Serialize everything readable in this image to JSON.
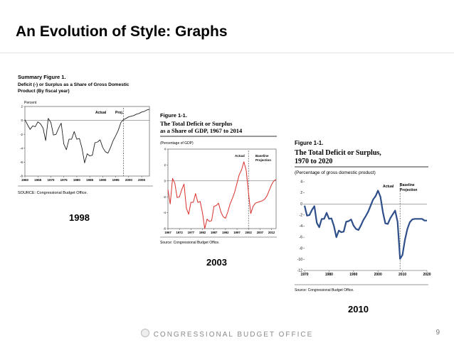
{
  "slide": {
    "title": "An Evolution of Style: Graphs",
    "footer": "CONGRESSIONAL BUDGET OFFICE",
    "page_number": "9"
  },
  "figures": [
    {
      "year_label": "1998",
      "heading": "Summary Figure 1.",
      "subtitle1": "Deficit (-) or Surplus as a Share of Gross Domestic",
      "subtitle2": "Product (By fiscal year)",
      "unit": "Percent",
      "actual_label": "Actual",
      "proj_label": "Proj.",
      "source": "SOURCE:   Congressional Budget Office."
    },
    {
      "year_label": "2003",
      "heading": "Figure 1-1.",
      "subtitle1": "The Total Deficit or Surplus",
      "subtitle2": "as a Share of GDP, 1967 to 2014",
      "unit": "(Percentage of GDP)",
      "actual_label": "Actual",
      "proj_label1": "Baseline",
      "proj_label2": "Projection",
      "source": "Source:   Congressional Budget Office."
    },
    {
      "year_label": "2010",
      "heading": "Figure 1-1.",
      "subtitle1": "The Total Deficit or Surplus,",
      "subtitle2": "1970 to 2020",
      "unit": "(Percentage of gross domestic product)",
      "actual_label": "Actual",
      "proj_label1": "Baseline",
      "proj_label2": "Projection",
      "source": "Source:   Congressional Budget Office."
    }
  ],
  "chart_data": [
    {
      "type": "line",
      "title": "Deficit (-) or Surplus as a Share of Gross Domestic Product (By fiscal year)",
      "ylabel": "Percent",
      "ylim": [
        -8,
        2
      ],
      "yticks": [
        "2",
        "0",
        "-2",
        "-4",
        "-6",
        "-8"
      ],
      "xlim": [
        1960,
        2008
      ],
      "xticks": [
        "1960",
        "1965",
        "1970",
        "1975",
        "1980",
        "1985",
        "1990",
        "1995",
        "2000",
        "2005"
      ],
      "split_year": 1998,
      "color": "#222222",
      "x": [
        1960,
        1961,
        1962,
        1963,
        1964,
        1965,
        1966,
        1967,
        1968,
        1969,
        1970,
        1971,
        1972,
        1973,
        1974,
        1975,
        1976,
        1977,
        1978,
        1979,
        1980,
        1981,
        1982,
        1983,
        1984,
        1985,
        1986,
        1987,
        1988,
        1989,
        1990,
        1991,
        1992,
        1993,
        1994,
        1995,
        1996,
        1997,
        1998,
        1999,
        2000,
        2001,
        2002,
        2003,
        2004,
        2005,
        2006,
        2007,
        2008
      ],
      "values": [
        0.1,
        -0.6,
        -1.3,
        -0.8,
        -0.9,
        -0.2,
        -0.5,
        -1.1,
        -2.9,
        0.3,
        -0.3,
        -2.1,
        -2.0,
        -1.1,
        -0.4,
        -3.4,
        -4.2,
        -2.7,
        -2.7,
        -1.6,
        -2.7,
        -2.6,
        -4.0,
        -6.1,
        -4.8,
        -5.1,
        -5.0,
        -3.2,
        -3.1,
        -2.8,
        -3.9,
        -4.5,
        -4.7,
        -3.9,
        -2.9,
        -2.2,
        -1.4,
        -0.3,
        0.1,
        0.3,
        0.5,
        0.6,
        0.7,
        0.9,
        1.0,
        1.2,
        1.3,
        1.5,
        1.6
      ]
    },
    {
      "type": "line",
      "title": "The Total Deficit or Surplus as a Share of GDP, 1967 to 2014",
      "ylabel": "(Percentage of GDP)",
      "ylim": [
        -6,
        4
      ],
      "yticks": [
        "4",
        "2",
        "0",
        "-2",
        "-4",
        "-6"
      ],
      "xlim": [
        1967,
        2014
      ],
      "xticks": [
        "1967",
        "1972",
        "1977",
        "1982",
        "1987",
        "1992",
        "1997",
        "2002",
        "2007",
        "2012"
      ],
      "split_year": 2002,
      "color": "#d9302b",
      "x": [
        1967,
        1968,
        1969,
        1970,
        1971,
        1972,
        1973,
        1974,
        1975,
        1976,
        1977,
        1978,
        1979,
        1980,
        1981,
        1982,
        1983,
        1984,
        1985,
        1986,
        1987,
        1988,
        1989,
        1990,
        1991,
        1992,
        1993,
        1994,
        1995,
        1996,
        1997,
        1998,
        1999,
        2000,
        2001,
        2002,
        2003,
        2004,
        2005,
        2006,
        2007,
        2008,
        2009,
        2010,
        2011,
        2012,
        2013,
        2014
      ],
      "values": [
        -1.1,
        -2.9,
        0.3,
        -0.3,
        -2.1,
        -2.0,
        -1.1,
        -0.4,
        -3.4,
        -4.2,
        -2.7,
        -2.7,
        -1.6,
        -2.7,
        -2.6,
        -4.0,
        -6.0,
        -4.8,
        -5.1,
        -5.0,
        -3.2,
        -3.1,
        -2.8,
        -3.9,
        -4.5,
        -4.7,
        -3.9,
        -2.9,
        -2.2,
        -1.4,
        -0.3,
        0.8,
        1.4,
        2.4,
        1.3,
        -1.5,
        -4.1,
        -3.2,
        -2.8,
        -2.7,
        -2.6,
        -2.5,
        -2.3,
        -1.9,
        -1.2,
        -0.5,
        0.0,
        0.2
      ]
    },
    {
      "type": "line",
      "title": "The Total Deficit or Surplus, 1970 to 2020",
      "ylabel": "(Percentage of gross domestic product)",
      "ylim": [
        -12,
        4
      ],
      "yticks": [
        "4",
        "2",
        "0",
        "-2",
        "-4",
        "-6",
        "-8",
        "-10",
        "-12"
      ],
      "xlim": [
        1970,
        2020
      ],
      "xticks": [
        "1970",
        "1980",
        "1990",
        "2000",
        "2010",
        "2020"
      ],
      "split_year": 2009,
      "color": "#2e4f8a",
      "x": [
        1970,
        1971,
        1972,
        1973,
        1974,
        1975,
        1976,
        1977,
        1978,
        1979,
        1980,
        1981,
        1982,
        1983,
        1984,
        1985,
        1986,
        1987,
        1988,
        1989,
        1990,
        1991,
        1992,
        1993,
        1994,
        1995,
        1996,
        1997,
        1998,
        1999,
        2000,
        2001,
        2002,
        2003,
        2004,
        2005,
        2006,
        2007,
        2008,
        2009,
        2010,
        2011,
        2012,
        2013,
        2014,
        2015,
        2016,
        2017,
        2018,
        2019,
        2020
      ],
      "values": [
        -0.3,
        -2.1,
        -2.0,
        -1.1,
        -0.4,
        -3.4,
        -4.2,
        -2.7,
        -2.7,
        -1.6,
        -2.7,
        -2.6,
        -4.0,
        -6.0,
        -4.8,
        -5.1,
        -5.0,
        -3.2,
        -3.1,
        -2.8,
        -3.9,
        -4.5,
        -4.7,
        -3.9,
        -2.9,
        -2.2,
        -1.4,
        -0.3,
        0.8,
        1.4,
        2.4,
        1.3,
        -1.5,
        -3.5,
        -3.6,
        -2.6,
        -1.9,
        -1.2,
        -3.2,
        -9.9,
        -9.2,
        -6.5,
        -4.5,
        -3.3,
        -2.8,
        -2.7,
        -2.7,
        -2.7,
        -2.7,
        -3.0,
        -3.0
      ]
    }
  ]
}
